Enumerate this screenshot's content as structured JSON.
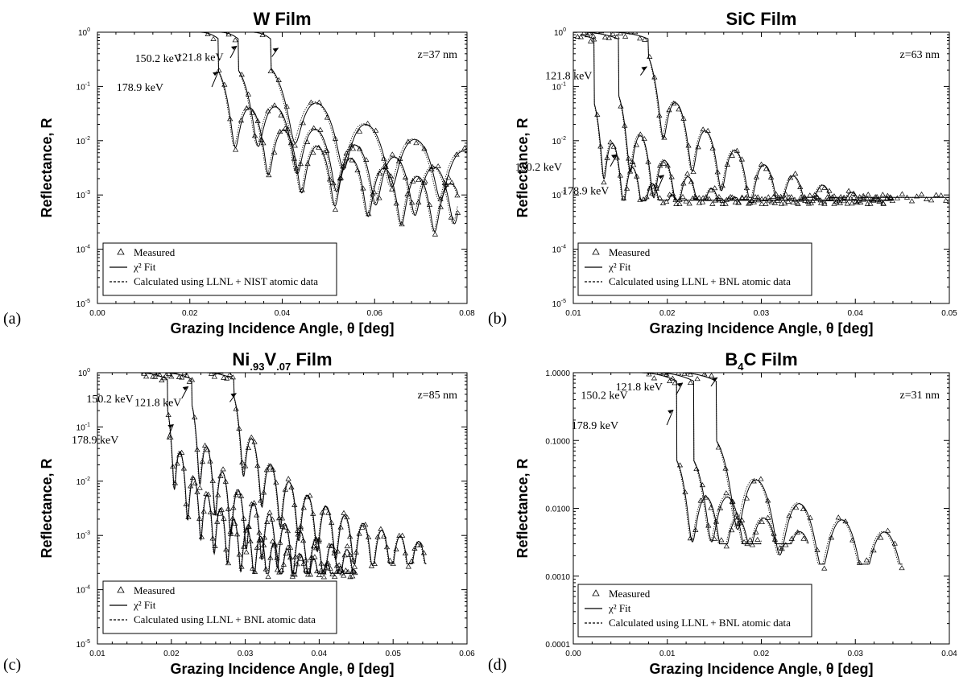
{
  "chart_data": [
    {
      "panel_label": "(a)",
      "type": "line",
      "title": "W Film",
      "xlabel": "Grazing Incidence Angle, θ [deg]",
      "ylabel": "Reflectance, R",
      "xlim": [
        0.0,
        0.08
      ],
      "ylim": [
        1e-05,
        1
      ],
      "yscale": "log",
      "xticks": [
        "0.00",
        "0.02",
        "0.04",
        "0.06",
        "0.08"
      ],
      "yticks_base": "10",
      "yticks_exp": [
        "0",
        "-1",
        "-2",
        "-3",
        "-4",
        "-5"
      ],
      "thickness_label": "z=37 nm",
      "annotations": [
        {
          "text": "121.8 keV",
          "x": 0.0395,
          "y": 0.55
        },
        {
          "text": "150.2 keV",
          "x": 0.0305,
          "y": 0.6
        },
        {
          "text": "178.9 keV",
          "x": 0.0265,
          "y": 0.2
        }
      ],
      "legend": [
        "Measured",
        "χ² Fit",
        "Calculated using LLNL + NIST atomic data"
      ],
      "series": [
        {
          "energy": "121.8 keV",
          "critical": 0.0375,
          "period": 0.0105,
          "env0": 0.22,
          "decay": 2.2,
          "floor": 8e-05,
          "xmax": 0.08
        },
        {
          "energy": "150.2 keV",
          "critical": 0.0305,
          "period": 0.0085,
          "env0": 0.2,
          "decay": 2.3,
          "floor": 8e-05,
          "xmax": 0.078
        },
        {
          "energy": "178.9 keV",
          "critical": 0.0262,
          "period": 0.0072,
          "env0": 0.19,
          "decay": 2.3,
          "floor": 8e-05,
          "xmax": 0.078
        }
      ]
    },
    {
      "panel_label": "(b)",
      "type": "line",
      "title": "SiC Film",
      "xlabel": "Grazing Incidence Angle, θ [deg]",
      "ylabel": "Reflectance, R",
      "xlim": [
        0.01,
        0.05
      ],
      "ylim": [
        1e-05,
        1
      ],
      "yscale": "log",
      "xticks": [
        "0.01",
        "0.02",
        "0.03",
        "0.04",
        "0.05"
      ],
      "yticks_base": "10",
      "yticks_exp": [
        "0",
        "-1",
        "-2",
        "-3",
        "-4",
        "-5"
      ],
      "thickness_label": "z=63 nm",
      "annotations": [
        {
          "text": "121.8 keV",
          "x": 0.018,
          "y": 0.25
        },
        {
          "text": "150.2 keV",
          "x": 0.0148,
          "y": 0.006
        },
        {
          "text": "178.9 keV",
          "x": 0.0198,
          "y": 0.0025
        }
      ],
      "legend": [
        "Measured",
        "χ² Fit",
        "Calculated using LLNL + BNL atomic data"
      ],
      "series": [
        {
          "energy": "121.8 keV",
          "critical": 0.018,
          "period": 0.0031,
          "env0": 0.35,
          "decay": 2.9,
          "floor": 0.0009,
          "xmax": 0.05
        },
        {
          "energy": "150.2 keV",
          "critical": 0.0148,
          "period": 0.0025,
          "env0": 0.07,
          "decay": 2.6,
          "floor": 0.0008,
          "xmax": 0.044
        },
        {
          "energy": "178.9 keV",
          "critical": 0.0122,
          "period": 0.0021,
          "env0": 0.05,
          "decay": 2.6,
          "floor": 0.0008,
          "xmax": 0.044
        }
      ]
    },
    {
      "panel_label": "(c)",
      "type": "line",
      "title": "Ni",
      "title_sub1": ".93",
      "title_mid": "V",
      "title_sub2": ".07",
      "title_end": " Film",
      "xlabel": "Grazing Incidence Angle, θ [deg]",
      "ylabel": "Reflectance, R",
      "xlim": [
        0.01,
        0.06
      ],
      "ylim": [
        1e-05,
        1
      ],
      "yscale": "log",
      "xticks": [
        "0.01",
        "0.02",
        "0.03",
        "0.04",
        "0.05",
        "0.06"
      ],
      "yticks_base": "10",
      "yticks_exp": [
        "0",
        "-1",
        "-2",
        "-3",
        "-4",
        "-5"
      ],
      "thickness_label": "z=85 nm",
      "annotations": [
        {
          "text": "121.8 keV",
          "x": 0.029,
          "y": 0.45
        },
        {
          "text": "150.2 keV",
          "x": 0.0225,
          "y": 0.6
        },
        {
          "text": "178.9 keV",
          "x": 0.0205,
          "y": 0.12
        }
      ],
      "legend": [
        "Measured",
        "χ² Fit",
        "Calculated using LLNL + BNL atomic data"
      ],
      "series": [
        {
          "energy": "121.8 keV",
          "critical": 0.0285,
          "period": 0.0025,
          "env0": 0.35,
          "decay": 2.6,
          "floor": 0.0003,
          "xmax": 0.0545
        },
        {
          "energy": "150.2 keV",
          "critical": 0.0228,
          "period": 0.0021,
          "env0": 0.25,
          "decay": 2.6,
          "floor": 0.0002,
          "xmax": 0.045
        },
        {
          "energy": "178.9 keV",
          "critical": 0.0195,
          "period": 0.0018,
          "env0": 0.2,
          "decay": 2.6,
          "floor": 0.0002,
          "xmax": 0.045
        }
      ]
    },
    {
      "panel_label": "(d)",
      "type": "line",
      "title": "B",
      "title_sub1": "4",
      "title_end": "C Film",
      "xlabel": "Grazing Incidence Angle, θ [deg]",
      "ylabel": "Reflectance, R",
      "xlim": [
        0.0,
        0.04
      ],
      "ylim": [
        0.0001,
        1
      ],
      "yscale": "log",
      "xticks": [
        "0.00",
        "0.01",
        "0.02",
        "0.03",
        "0.04"
      ],
      "yticks_labels": [
        "1.0000",
        "0.1000",
        "0.0100",
        "0.0010",
        "0.0001"
      ],
      "thickness_label": "z=31 nm",
      "annotations": [
        {
          "text": "121.8 keV",
          "x": 0.0155,
          "y": 0.9
        },
        {
          "text": "150.2 keV",
          "x": 0.0118,
          "y": 0.75
        },
        {
          "text": "178.9 keV",
          "x": 0.0108,
          "y": 0.3
        }
      ],
      "legend": [
        "Measured",
        "χ² Fit",
        "Calculated using LLNL + BNL atomic data"
      ],
      "series": [
        {
          "energy": "121.8 keV",
          "critical": 0.0152,
          "period": 0.0045,
          "env0": 0.1,
          "decay": 2.0,
          "floor": 0.0015,
          "xmax": 0.035
        },
        {
          "energy": "150.2 keV",
          "critical": 0.0128,
          "period": 0.0038,
          "env0": 0.05,
          "decay": 1.9,
          "floor": 0.003,
          "xmax": 0.025
        },
        {
          "energy": "178.9 keV",
          "critical": 0.011,
          "period": 0.0033,
          "env0": 0.05,
          "decay": 1.9,
          "floor": 0.003,
          "xmax": 0.02
        }
      ]
    }
  ]
}
